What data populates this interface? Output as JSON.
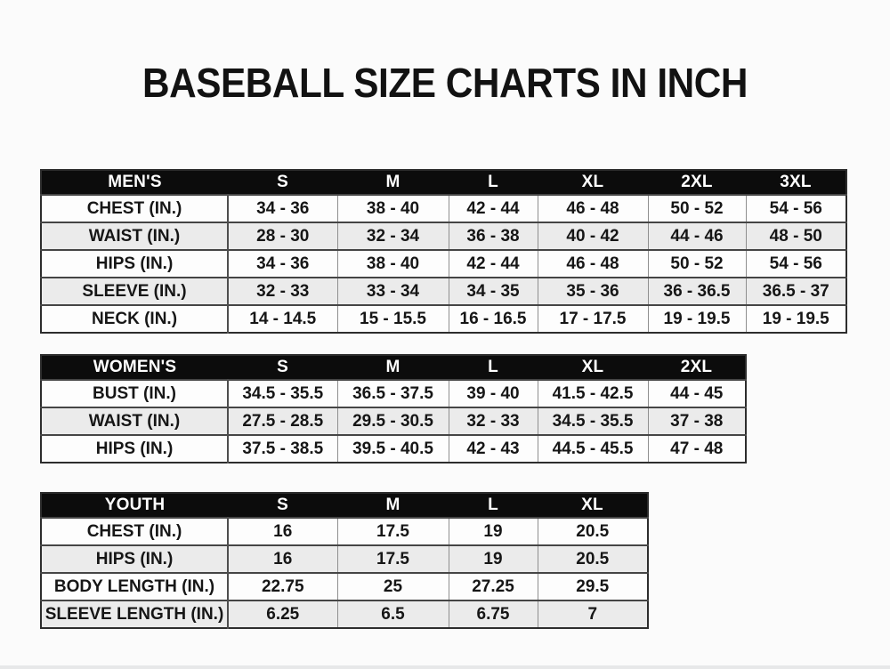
{
  "page": {
    "title": "BASEBALL SIZE CHARTS IN INCH"
  },
  "colors": {
    "page_bg": "#fbfbfb",
    "header_bg": "#0c0c0c",
    "header_text": "#ffffff",
    "row_bg": "#fdfdfd",
    "row_alt_bg": "#ebebeb",
    "cell_text": "#161616",
    "grid_line": "#454545",
    "divider": "#8f8f8f"
  },
  "chart_data": [
    {
      "type": "table",
      "name": "mens",
      "header": [
        "MEN'S",
        "S",
        "M",
        "L",
        "XL",
        "2XL",
        "3XL"
      ],
      "rows": [
        [
          "CHEST (IN.)",
          "34 - 36",
          "38 - 40",
          "42 - 44",
          "46 - 48",
          "50 - 52",
          "54 - 56"
        ],
        [
          "WAIST (IN.)",
          "28 - 30",
          "32 - 34",
          "36 - 38",
          "40 - 42",
          "44 - 46",
          "48 - 50"
        ],
        [
          "HIPS (IN.)",
          "34 - 36",
          "38 - 40",
          "42 - 44",
          "46 - 48",
          "50 - 52",
          "54 - 56"
        ],
        [
          "SLEEVE (IN.)",
          "32 - 33",
          "33 - 34",
          "34 - 35",
          "35 - 36",
          "36 - 36.5",
          "36.5 - 37"
        ],
        [
          "NECK (IN.)",
          "14 - 14.5",
          "15 - 15.5",
          "16 - 16.5",
          "17 - 17.5",
          "19 - 19.5",
          "19 - 19.5"
        ]
      ]
    },
    {
      "type": "table",
      "name": "womens",
      "header": [
        "WOMEN'S",
        "S",
        "M",
        "L",
        "XL",
        "2XL"
      ],
      "rows": [
        [
          "BUST (IN.)",
          "34.5 - 35.5",
          "36.5 - 37.5",
          "39 - 40",
          "41.5 - 42.5",
          "44 - 45"
        ],
        [
          "WAIST (IN.)",
          "27.5 - 28.5",
          "29.5 - 30.5",
          "32 - 33",
          "34.5 - 35.5",
          "37 - 38"
        ],
        [
          "HIPS (IN.)",
          "37.5 - 38.5",
          "39.5 - 40.5",
          "42 - 43",
          "44.5 - 45.5",
          "47 - 48"
        ]
      ]
    },
    {
      "type": "table",
      "name": "youth",
      "header": [
        "YOUTH",
        "S",
        "M",
        "L",
        "XL"
      ],
      "rows": [
        [
          "CHEST (IN.)",
          "16",
          "17.5",
          "19",
          "20.5"
        ],
        [
          "HIPS (IN.)",
          "16",
          "17.5",
          "19",
          "20.5"
        ],
        [
          "BODY LENGTH (IN.)",
          "22.75",
          "25",
          "27.25",
          "29.5"
        ],
        [
          "SLEEVE LENGTH (IN.)",
          "6.25",
          "6.5",
          "6.75",
          "7"
        ]
      ]
    }
  ]
}
